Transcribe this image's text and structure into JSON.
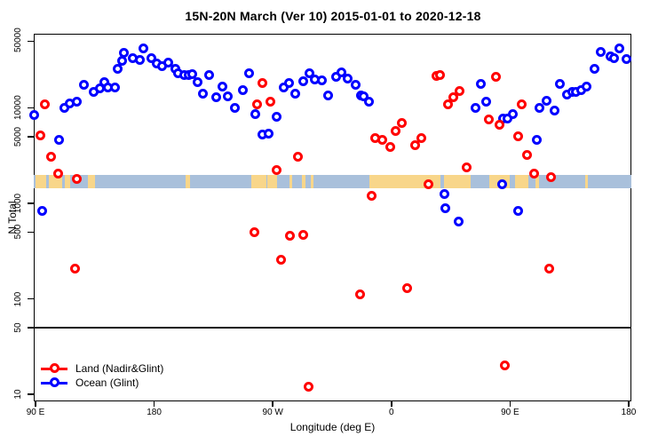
{
  "title": "15N-20N March (Ver 10)   2015-01-01 to 2020-12-18",
  "legend": {
    "items": [
      {
        "label": "Land (Nadir&Glint)",
        "color": "#ff0000"
      },
      {
        "label": "Ocean (Glint)",
        "color": "#0000ff"
      }
    ]
  },
  "chart_data": {
    "type": "scatter",
    "title": "15N-20N March (Ver 10)   2015-01-01 to 2020-12-18",
    "xlabel": "Longitude (deg E)",
    "ylabel": "N Total",
    "grid": false,
    "legend_position": "bottom-left",
    "axes": {
      "x": {
        "label": "Longitude (deg E)",
        "note": "axis runs 90E -> 180 -> 90W -> 0 -> 90E -> 180 (450 deg span); values below are axis degrees where 270=90W, 360=0, 450=90E, 540=180",
        "range": [
          88.5,
          542
        ],
        "ticks": [
          {
            "v": 90,
            "label": "90 E"
          },
          {
            "v": 180,
            "label": "180"
          },
          {
            "v": 270,
            "label": "90 W"
          },
          {
            "v": 360,
            "label": "0"
          },
          {
            "v": 450,
            "label": "90 E"
          },
          {
            "v": 540,
            "label": "180"
          }
        ]
      },
      "y": {
        "label": "N Total",
        "scale": "log10",
        "range": [
          8,
          60000
        ],
        "ticks": [
          {
            "v": 10,
            "label": "10"
          },
          {
            "v": 50,
            "label": "50"
          },
          {
            "v": 100,
            "label": "100"
          },
          {
            "v": 500,
            "label": "500"
          },
          {
            "v": 1000,
            "label": "1000"
          },
          {
            "v": 5000,
            "label": "5000"
          },
          {
            "v": 10000,
            "label": "10000"
          },
          {
            "v": 50000,
            "label": "50000"
          }
        ]
      }
    },
    "reference_line_n": 50,
    "map_band": {
      "description": "latitude-strip world map band (ocean/land at 15N-20N)",
      "n_top": 2000,
      "n_bottom": 1450,
      "ocean_color": "#a9c0db",
      "land_color": "#f8d68a",
      "land_patches": [
        {
          "lon": 90,
          "w": 8
        },
        {
          "lon": 100,
          "w": 10
        },
        {
          "lon": 112,
          "w": 4
        },
        {
          "lon": 130,
          "w": 5
        },
        {
          "lon": 204,
          "w": 3
        },
        {
          "lon": 254,
          "w": 11
        },
        {
          "lon": 266,
          "w": 7
        },
        {
          "lon": 283,
          "w": 2
        },
        {
          "lon": 292,
          "w": 3
        },
        {
          "lon": 299,
          "w": 2
        },
        {
          "lon": 343,
          "w": 54
        },
        {
          "lon": 400,
          "w": 20
        },
        {
          "lon": 434,
          "w": 16
        },
        {
          "lon": 454,
          "w": 10
        },
        {
          "lon": 469,
          "w": 3
        },
        {
          "lon": 507,
          "w": 2
        }
      ]
    },
    "points_format": [
      "lon_axis_deg",
      "n_total"
    ],
    "series": [
      {
        "name": "Ocean (Glint)",
        "color": "#0000ff",
        "points": [
          [
            89,
            8500
          ],
          [
            95,
            840
          ],
          [
            108,
            4600
          ],
          [
            112,
            9900
          ],
          [
            116,
            11200
          ],
          [
            121,
            11500
          ],
          [
            127,
            17300
          ],
          [
            134,
            14800
          ],
          [
            139,
            15900
          ],
          [
            142,
            18800
          ],
          [
            145,
            16200
          ],
          [
            150,
            16200
          ],
          [
            152,
            25400
          ],
          [
            156,
            30800
          ],
          [
            157,
            38100
          ],
          [
            164,
            33500
          ],
          [
            169,
            32100
          ],
          [
            172,
            42400
          ],
          [
            178,
            33000
          ],
          [
            182,
            28900
          ],
          [
            186,
            27100
          ],
          [
            191,
            30100
          ],
          [
            196,
            25900
          ],
          [
            198,
            23300
          ],
          [
            203,
            22300
          ],
          [
            206,
            22300
          ],
          [
            209,
            22800
          ],
          [
            213,
            18800
          ],
          [
            217,
            14200
          ],
          [
            222,
            21900
          ],
          [
            227,
            12800
          ],
          [
            232,
            16600
          ],
          [
            236,
            13100
          ],
          [
            241,
            9900
          ],
          [
            247,
            15200
          ],
          [
            252,
            23300
          ],
          [
            257,
            8700
          ],
          [
            262,
            5300
          ],
          [
            267,
            5400
          ],
          [
            273,
            8000
          ],
          [
            278,
            16200
          ],
          [
            282,
            18400
          ],
          [
            287,
            14200
          ],
          [
            293,
            19200
          ],
          [
            298,
            23300
          ],
          [
            302,
            20000
          ],
          [
            307,
            19600
          ],
          [
            312,
            13600
          ],
          [
            318,
            21000
          ],
          [
            322,
            23800
          ],
          [
            327,
            20400
          ],
          [
            333,
            17300
          ],
          [
            337,
            13600
          ],
          [
            339,
            13100
          ],
          [
            343,
            11500
          ],
          [
            400,
            1240
          ],
          [
            401,
            880
          ],
          [
            411,
            640
          ],
          [
            424,
            9900
          ],
          [
            428,
            17700
          ],
          [
            432,
            11500
          ],
          [
            444,
            1570
          ],
          [
            445,
            7800
          ],
          [
            448,
            7700
          ],
          [
            452,
            8700
          ],
          [
            456,
            840
          ],
          [
            470,
            4600
          ],
          [
            472,
            9900
          ],
          [
            478,
            11800
          ],
          [
            484,
            9400
          ],
          [
            488,
            17700
          ],
          [
            493,
            13700
          ],
          [
            497,
            14700
          ],
          [
            500,
            14700
          ],
          [
            504,
            15200
          ],
          [
            508,
            16900
          ],
          [
            514,
            25400
          ],
          [
            519,
            38900
          ],
          [
            526,
            34300
          ],
          [
            529,
            33000
          ],
          [
            533,
            42400
          ],
          [
            538,
            32500
          ]
        ]
      },
      {
        "name": "Land (Nadir&Glint)",
        "color": "#ff0000",
        "points": [
          [
            97,
            11000
          ],
          [
            94,
            5100
          ],
          [
            102,
            3050
          ],
          [
            107,
            2030
          ],
          [
            121,
            1820
          ],
          [
            120,
            205
          ],
          [
            262,
            18400
          ],
          [
            258,
            11000
          ],
          [
            268,
            11500
          ],
          [
            289,
            3050
          ],
          [
            273,
            2210
          ],
          [
            256,
            495
          ],
          [
            283,
            460
          ],
          [
            293,
            470
          ],
          [
            276,
            255
          ],
          [
            297,
            12
          ],
          [
            336,
            112
          ],
          [
            372,
            130
          ],
          [
            345,
            1210
          ],
          [
            388,
            1570
          ],
          [
            348,
            4800
          ],
          [
            353,
            4600
          ],
          [
            359,
            3900
          ],
          [
            363,
            5700
          ],
          [
            368,
            7000
          ],
          [
            378,
            4100
          ],
          [
            383,
            4800
          ],
          [
            394,
            21400
          ],
          [
            397,
            21900
          ],
          [
            403,
            10800
          ],
          [
            407,
            12800
          ],
          [
            412,
            14900
          ],
          [
            417,
            2400
          ],
          [
            434,
            7500
          ],
          [
            439,
            21000
          ],
          [
            442,
            6600
          ],
          [
            446,
            20
          ],
          [
            456,
            5000
          ],
          [
            459,
            11000
          ],
          [
            463,
            3200
          ],
          [
            468,
            2030
          ],
          [
            480,
            205
          ],
          [
            481,
            1900
          ]
        ]
      }
    ]
  }
}
